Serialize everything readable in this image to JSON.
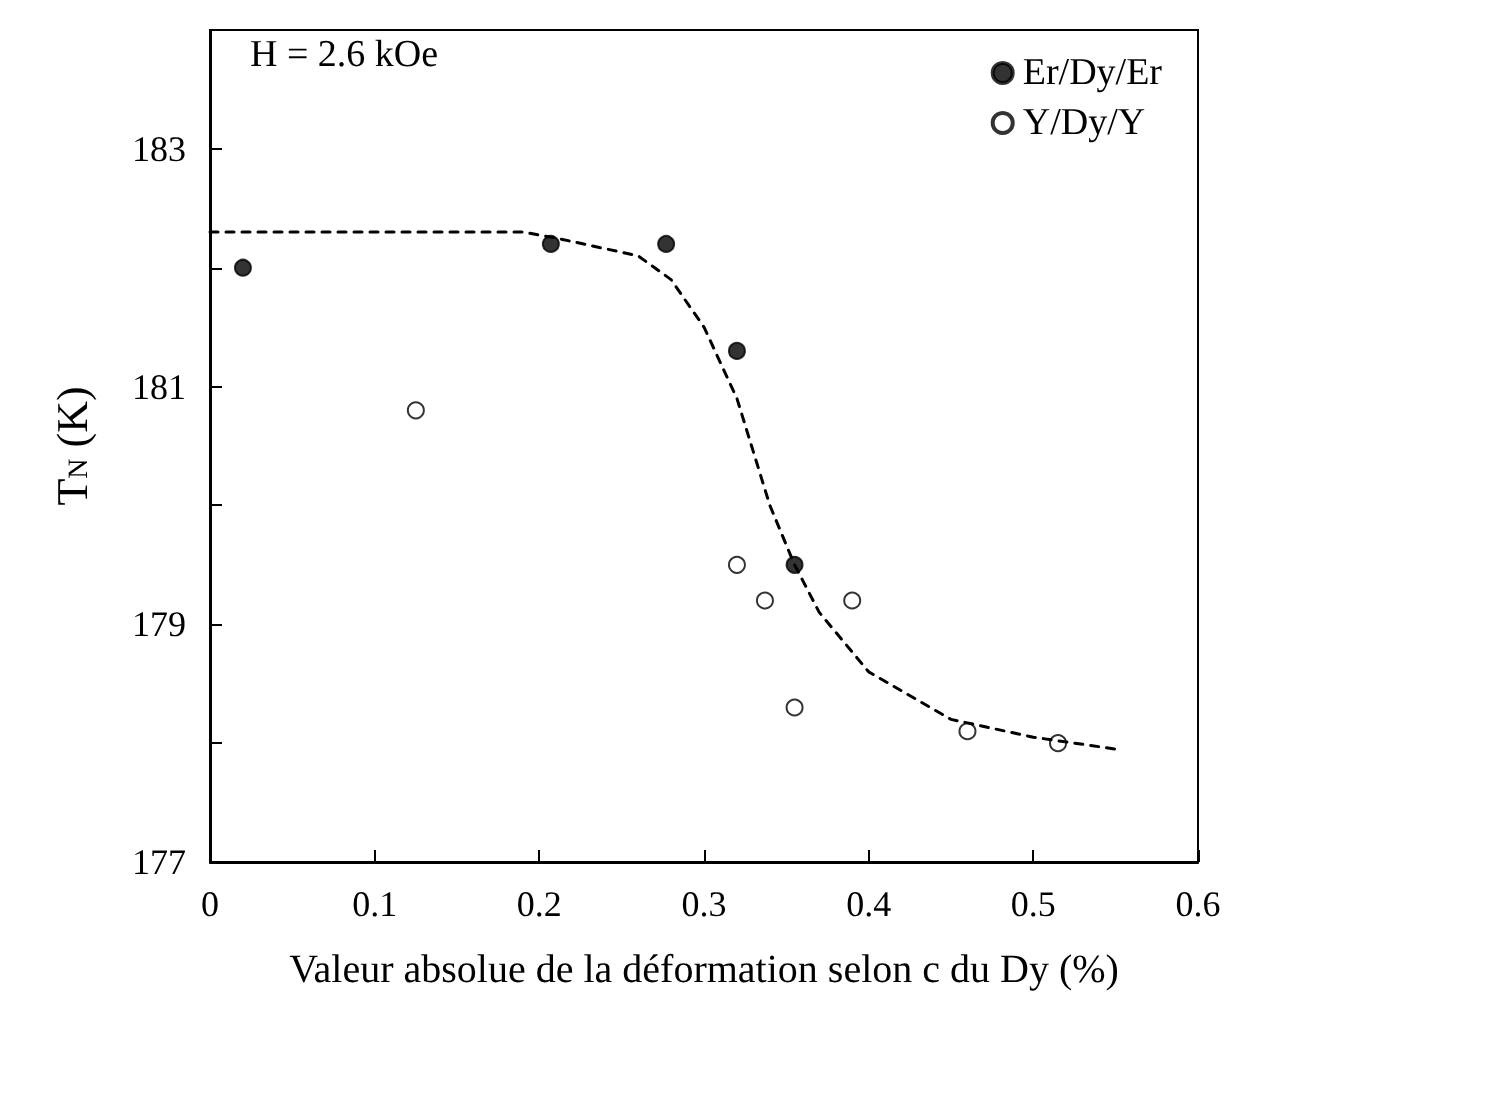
{
  "chart_data": {
    "type": "scatter",
    "xlabel": "Valeur absolue de la déformation selon c du Dy (%)",
    "ylabel": "T$_{N}$ (K)",
    "annotations": [
      "H = 2.6 kOe"
    ],
    "xlim": [
      0,
      0.6
    ],
    "xticks": [
      0,
      0.1,
      0.2,
      0.3,
      0.4,
      0.5,
      0.6
    ],
    "ylim": [
      177,
      184
    ],
    "yticks": [
      177,
      {
        "value": 178,
        "label": null
      },
      179,
      {
        "value": 180,
        "label": null
      },
      181,
      {
        "value": 182,
        "label": null
      },
      183
    ],
    "grid": false,
    "legend": "top right",
    "marker": "circle",
    "series": [
      {
        "name": "Er/Dy/Er",
        "color": "#000000",
        "x": [
          0.02,
          0.207,
          0.277,
          0.32,
          0.355
        ],
        "values": [
          182.0,
          182.2,
          182.2,
          181.3,
          179.5
        ]
      },
      {
        "name": "Y/Dy/Y",
        "color": "#ffffff",
        "x": [
          0.125,
          0.32,
          0.337,
          0.355,
          0.39,
          0.46,
          0.515
        ],
        "values": [
          180.8,
          179.5,
          179.2,
          178.3,
          179.2,
          178.1,
          178.0
        ]
      },
      {
        "type": "line",
        "color": "#000000",
        "marker": "none",
        "line_style": "dashed",
        "x": [
          0,
          0.1,
          0.19,
          0.21,
          0.26,
          0.28,
          0.3,
          0.32,
          0.34,
          0.355,
          0.37,
          0.4,
          0.45,
          0.5,
          0.55
        ],
        "values": [
          182.3,
          182.3,
          182.3,
          182.25,
          182.1,
          181.9,
          181.5,
          180.9,
          180.0,
          179.5,
          179.1,
          178.6,
          178.2,
          178.05,
          177.95
        ]
      }
    ]
  }
}
